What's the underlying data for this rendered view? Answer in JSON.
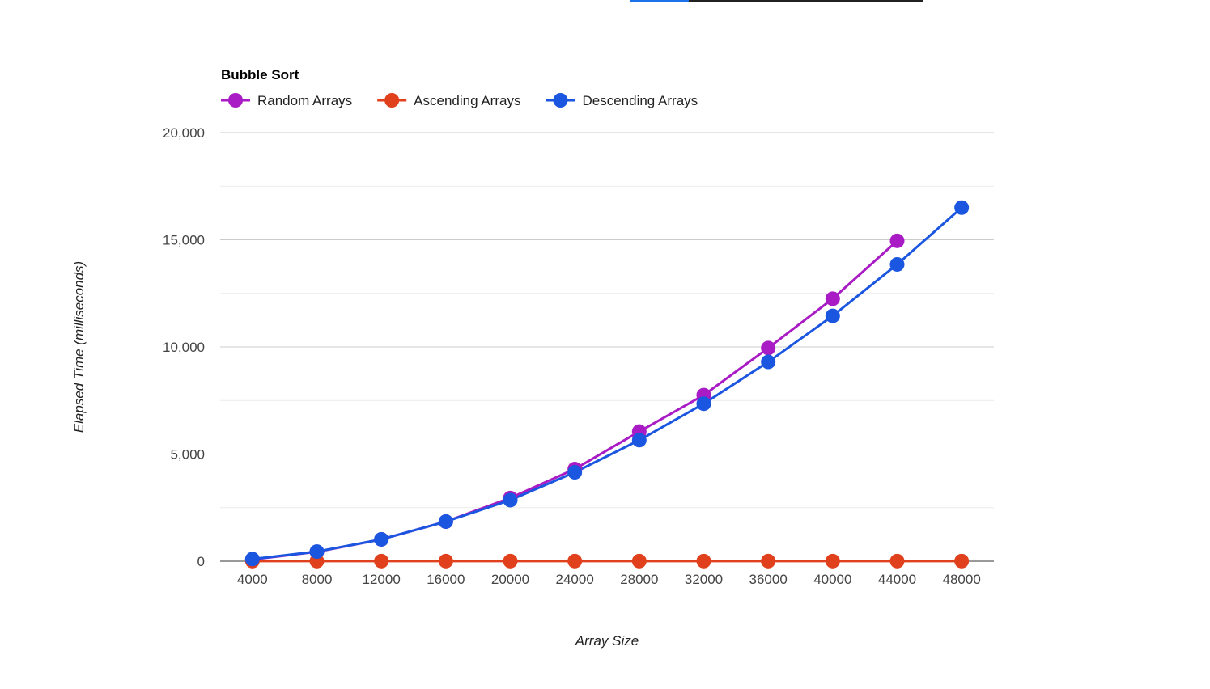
{
  "chart_data": {
    "type": "line",
    "title": "Bubble Sort",
    "xlabel": "Array Size",
    "ylabel": "Elapsed Time (milliseconds)",
    "categories": [
      "4000",
      "8000",
      "12000",
      "16000",
      "20000",
      "24000",
      "28000",
      "32000",
      "36000",
      "40000",
      "44000",
      "48000"
    ],
    "ylim": [
      0,
      20000
    ],
    "y_ticks": [
      0,
      5000,
      10000,
      15000,
      20000
    ],
    "y_tick_labels": [
      "0",
      "5,000",
      "10,000",
      "15,000",
      "20,000"
    ],
    "gridlines": true,
    "minor_gridlines": true,
    "legend_position": "top-left",
    "series": [
      {
        "name": "Random Arrays",
        "color": "#a91bc4",
        "values": [
          80,
          440,
          1020,
          1850,
          2950,
          4300,
          6050,
          7750,
          9950,
          12250,
          14950,
          null
        ]
      },
      {
        "name": "Ascending Arrays",
        "color": "#e0401c",
        "values": [
          5,
          5,
          5,
          5,
          5,
          5,
          5,
          5,
          5,
          5,
          5,
          5
        ]
      },
      {
        "name": "Descending Arrays",
        "color": "#1a56e0",
        "values": [
          100,
          450,
          1020,
          1850,
          2850,
          4150,
          5650,
          7350,
          9300,
          11450,
          13850,
          16500
        ]
      }
    ]
  }
}
